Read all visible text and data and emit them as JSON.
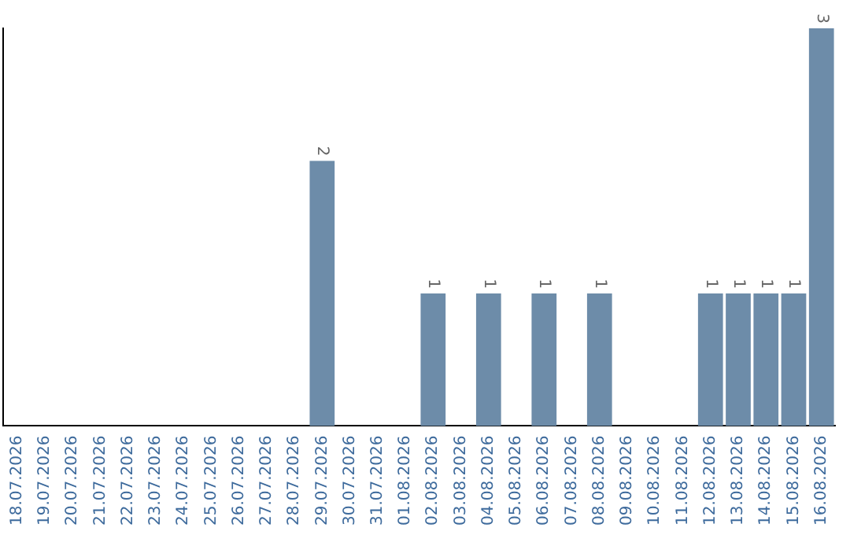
{
  "chart_data": {
    "type": "bar",
    "categories": [
      "18.07.2026",
      "19.07.2026",
      "20.07.2026",
      "21.07.2026",
      "22.07.2026",
      "23.07.2026",
      "24.07.2026",
      "25.07.2026",
      "26.07.2026",
      "27.07.2026",
      "28.07.2026",
      "29.07.2026",
      "30.07.2026",
      "31.07.2026",
      "01.08.2026",
      "02.08.2026",
      "03.08.2026",
      "04.08.2026",
      "05.08.2026",
      "06.08.2026",
      "07.08.2026",
      "08.08.2026",
      "09.08.2026",
      "10.08.2026",
      "11.08.2026",
      "12.08.2026",
      "13.08.2026",
      "14.08.2026",
      "15.08.2026",
      "16.08.2026"
    ],
    "values": [
      0,
      0,
      0,
      0,
      0,
      0,
      0,
      0,
      0,
      0,
      0,
      2,
      0,
      0,
      0,
      1,
      0,
      1,
      0,
      1,
      0,
      1,
      0,
      0,
      0,
      1,
      1,
      1,
      1,
      3
    ],
    "value_labels": [
      null,
      null,
      null,
      null,
      null,
      null,
      null,
      null,
      null,
      null,
      null,
      "2",
      null,
      null,
      null,
      "1",
      null,
      "1",
      null,
      "1",
      null,
      "1",
      null,
      null,
      null,
      "1",
      "1",
      "1",
      "1",
      "3"
    ],
    "color": "#6d8ca9",
    "grid": false,
    "legend": false
  }
}
